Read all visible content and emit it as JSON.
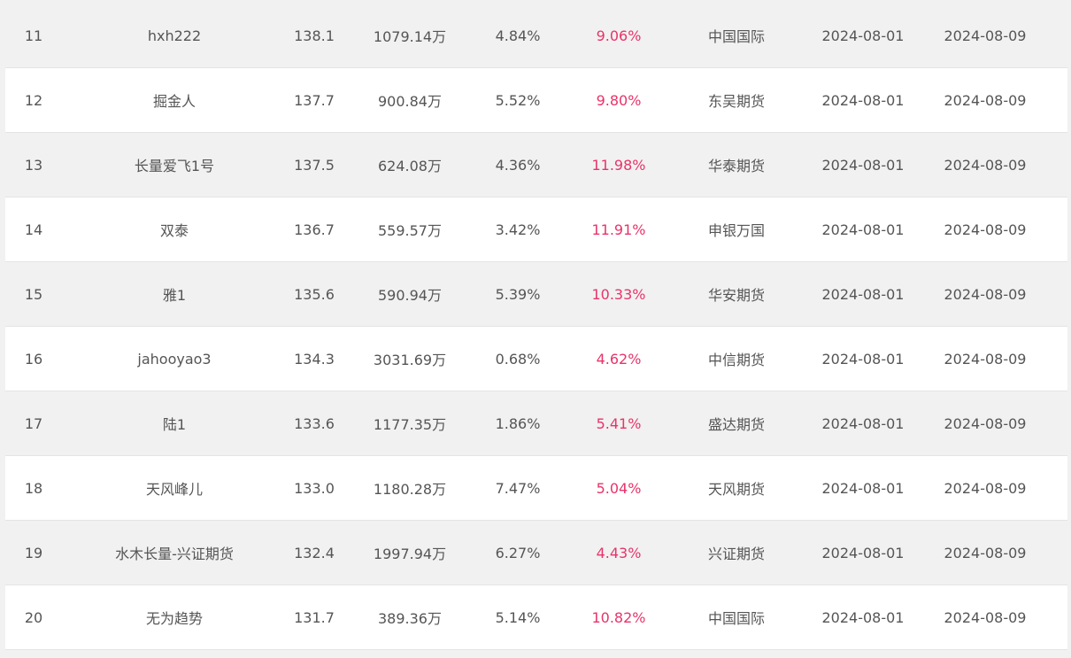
{
  "table": {
    "rows": [
      {
        "rank": "11",
        "name": "hxh222",
        "score": "138.1",
        "fund": "1079.14万",
        "pct1": "4.84%",
        "pct2": "9.06%",
        "broker": "中国国际",
        "date_start": "2024-08-01",
        "date_end": "2024-08-09"
      },
      {
        "rank": "12",
        "name": "掘金人",
        "score": "137.7",
        "fund": "900.84万",
        "pct1": "5.52%",
        "pct2": "9.80%",
        "broker": "东吴期货",
        "date_start": "2024-08-01",
        "date_end": "2024-08-09"
      },
      {
        "rank": "13",
        "name": "长量爱飞1号",
        "score": "137.5",
        "fund": "624.08万",
        "pct1": "4.36%",
        "pct2": "11.98%",
        "broker": "华泰期货",
        "date_start": "2024-08-01",
        "date_end": "2024-08-09"
      },
      {
        "rank": "14",
        "name": "双泰",
        "score": "136.7",
        "fund": "559.57万",
        "pct1": "3.42%",
        "pct2": "11.91%",
        "broker": "申银万国",
        "date_start": "2024-08-01",
        "date_end": "2024-08-09"
      },
      {
        "rank": "15",
        "name": "雅1",
        "score": "135.6",
        "fund": "590.94万",
        "pct1": "5.39%",
        "pct2": "10.33%",
        "broker": "华安期货",
        "date_start": "2024-08-01",
        "date_end": "2024-08-09"
      },
      {
        "rank": "16",
        "name": "jahooyao3",
        "score": "134.3",
        "fund": "3031.69万",
        "pct1": "0.68%",
        "pct2": "4.62%",
        "broker": "中信期货",
        "date_start": "2024-08-01",
        "date_end": "2024-08-09"
      },
      {
        "rank": "17",
        "name": "陆1",
        "score": "133.6",
        "fund": "1177.35万",
        "pct1": "1.86%",
        "pct2": "5.41%",
        "broker": "盛达期货",
        "date_start": "2024-08-01",
        "date_end": "2024-08-09"
      },
      {
        "rank": "18",
        "name": "天风峰儿",
        "score": "133.0",
        "fund": "1180.28万",
        "pct1": "7.47%",
        "pct2": "5.04%",
        "broker": "天风期货",
        "date_start": "2024-08-01",
        "date_end": "2024-08-09"
      },
      {
        "rank": "19",
        "name": "水木长量-兴证期货",
        "score": "132.4",
        "fund": "1997.94万",
        "pct1": "6.27%",
        "pct2": "4.43%",
        "broker": "兴证期货",
        "date_start": "2024-08-01",
        "date_end": "2024-08-09"
      },
      {
        "rank": "20",
        "name": "无为趋势",
        "score": "131.7",
        "fund": "389.36万",
        "pct1": "5.14%",
        "pct2": "10.82%",
        "broker": "中国国际",
        "date_start": "2024-08-01",
        "date_end": "2024-08-09"
      }
    ]
  },
  "colors": {
    "text": "#555555",
    "accent_pct": "#e8336a",
    "row_odd_bg": "#f1f1f1",
    "row_even_bg": "#ffffff"
  }
}
